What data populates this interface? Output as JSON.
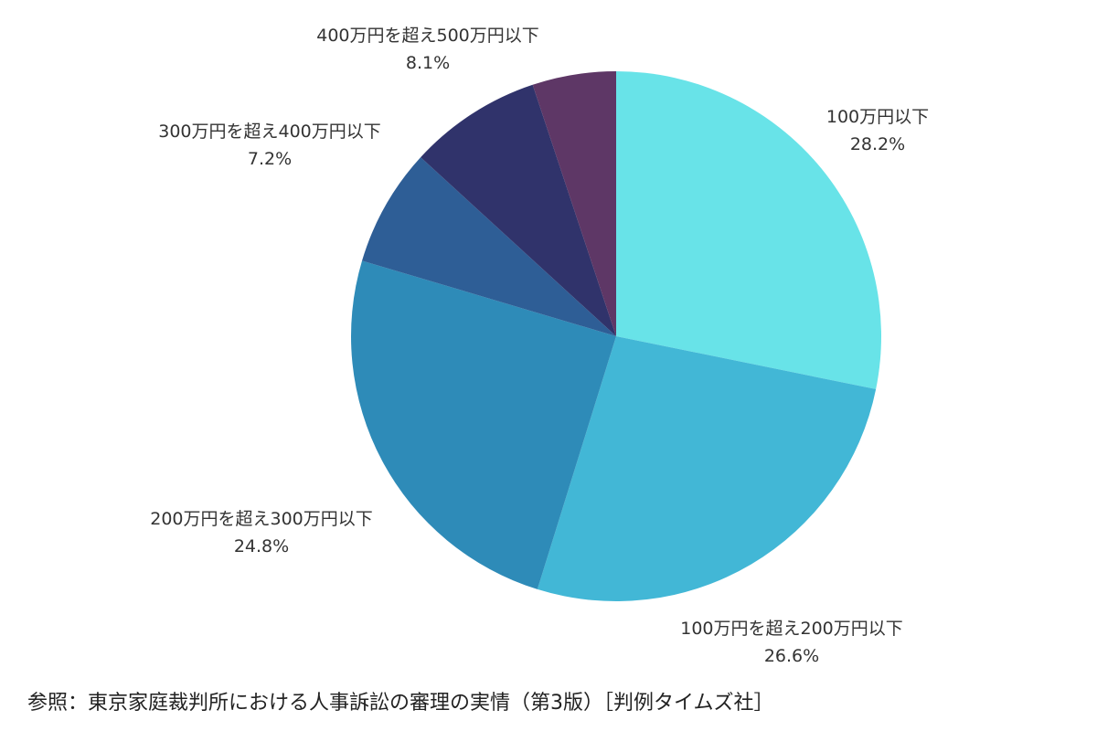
{
  "chart_data": {
    "type": "pie",
    "title": "",
    "start_angle_deg": 0,
    "direction": "clockwise",
    "slices": [
      {
        "label": "100万円以下",
        "value": 28.2,
        "value_label": "28.2%",
        "color": "#68E3E8"
      },
      {
        "label": "100万円を超え200万円以下",
        "value": 26.6,
        "value_label": "26.6%",
        "color": "#42B7D6"
      },
      {
        "label": "200万円を超え300万円以下",
        "value": 24.8,
        "value_label": "24.8%",
        "color": "#2E8BB8"
      },
      {
        "label": "300万円を超え400万円以下",
        "value": 7.2,
        "value_label": "7.2%",
        "color": "#2E5E96"
      },
      {
        "label": "400万円を超え500万円以下",
        "value": 8.1,
        "value_label": "8.1%",
        "color": "#30336B"
      },
      {
        "label": "",
        "value": 5.1,
        "value_label": "",
        "color": "#5E3766"
      }
    ]
  },
  "source_note": "参照：東京家庭裁判所における人事訴訟の審理の実情（第3版）［判例タイムズ社］"
}
